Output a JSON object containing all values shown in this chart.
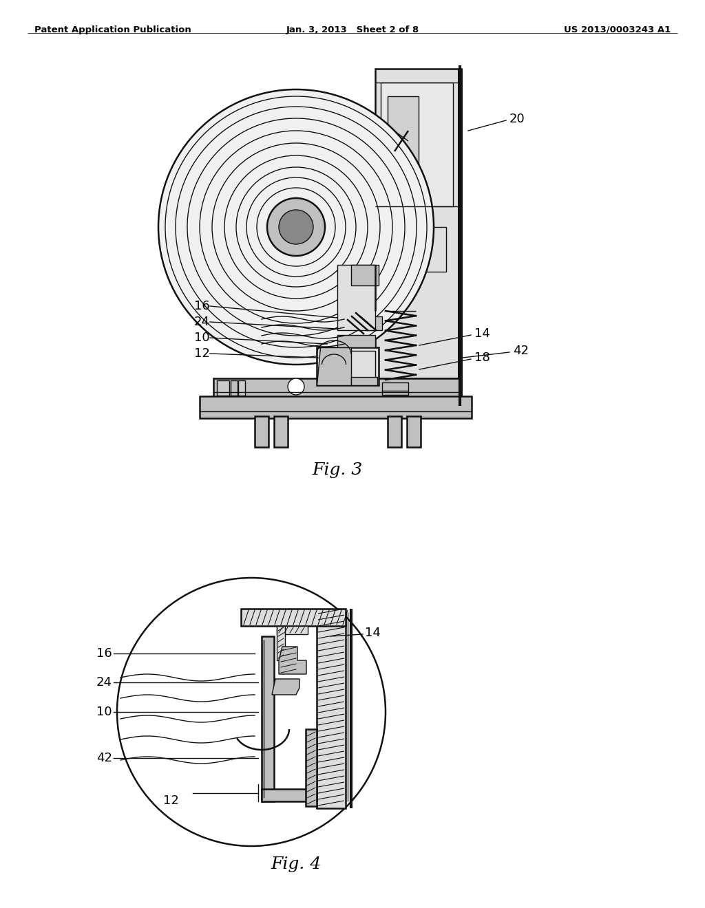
{
  "bg_color": "#ffffff",
  "header_left": "Patent Application Publication",
  "header_center": "Jan. 3, 2013   Sheet 2 of 8",
  "header_right": "US 2013/0003243 A1",
  "fig3_label": "Fig. 3",
  "fig4_label": "Fig. 4",
  "lc": "#111111",
  "lc_med": "#333333",
  "gray_light": "#e0e0e0",
  "gray_med": "#c0c0c0",
  "gray_dark": "#888888"
}
